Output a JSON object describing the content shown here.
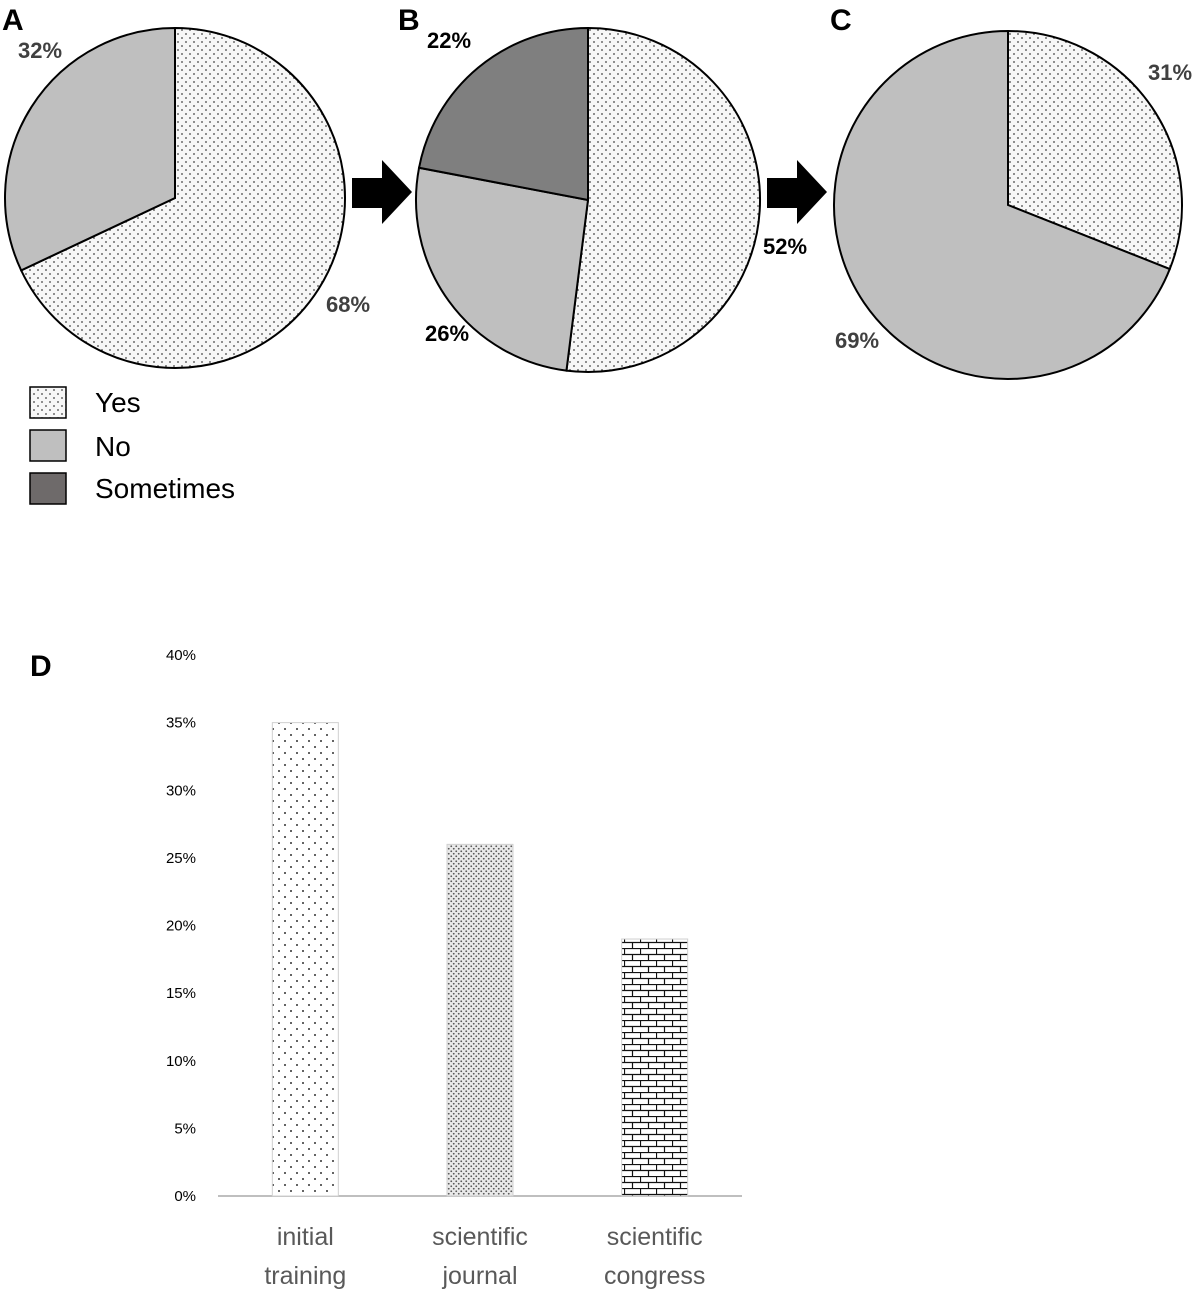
{
  "colors": {
    "yes_fill": "#f7f7f7",
    "yes_dot": "#444444",
    "no_fill": "#bfbfbf",
    "sometimes_fill": "#7f7f7f",
    "legend_sometimes": "#6e6a6a",
    "outline": "#000000",
    "axis_line": "#bfbfbf",
    "tick_text": "#000000",
    "cat_text": "#595959"
  },
  "legend": {
    "items": [
      {
        "key": "yes",
        "label": "Yes"
      },
      {
        "key": "no",
        "label": "No"
      },
      {
        "key": "sometimes",
        "label": "Sometimes"
      }
    ]
  },
  "chart_data": [
    {
      "type": "pie",
      "panel": "A",
      "title": "",
      "slices": [
        {
          "name": "Yes",
          "value": 68,
          "label": "68%",
          "pattern": "dots"
        },
        {
          "name": "No",
          "value": 32,
          "label": "32%",
          "pattern": "light-gray"
        }
      ]
    },
    {
      "type": "pie",
      "panel": "B",
      "title": "",
      "slices": [
        {
          "name": "Yes",
          "value": 52,
          "label": "52%",
          "pattern": "dots"
        },
        {
          "name": "No",
          "value": 26,
          "label": "26%",
          "pattern": "light-gray"
        },
        {
          "name": "Sometimes",
          "value": 22,
          "label": "22%",
          "pattern": "dark-gray"
        }
      ]
    },
    {
      "type": "pie",
      "panel": "C",
      "title": "",
      "slices": [
        {
          "name": "Yes",
          "value": 31,
          "label": "31%",
          "pattern": "dots"
        },
        {
          "name": "No",
          "value": 69,
          "label": "69%",
          "pattern": "light-gray"
        }
      ]
    },
    {
      "type": "bar",
      "panel": "D",
      "title": "",
      "xlabel": "",
      "ylabel": "",
      "categories": [
        "initial training",
        "scientific journal",
        "scientific congress"
      ],
      "category_lines": [
        [
          "initial",
          "training"
        ],
        [
          "scientific",
          "journal"
        ],
        [
          "scientific",
          "congress"
        ]
      ],
      "values": [
        35,
        26,
        19
      ],
      "ylim": [
        0,
        40
      ],
      "yticks": [
        0,
        5,
        10,
        15,
        20,
        25,
        30,
        35,
        40
      ],
      "ytick_labels": [
        "0%",
        "5%",
        "10%",
        "15%",
        "20%",
        "25%",
        "30%",
        "35%",
        "40%"
      ],
      "bar_patterns": [
        "sparse-dots",
        "dense-dots",
        "bricks"
      ],
      "grid": false
    }
  ]
}
